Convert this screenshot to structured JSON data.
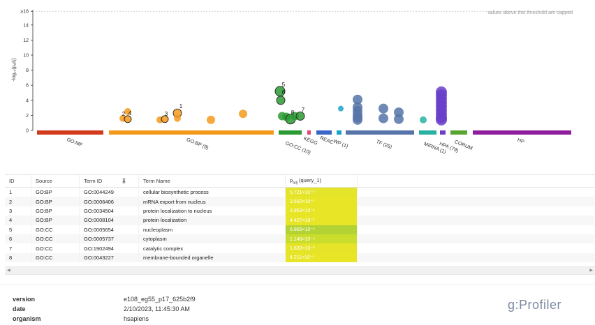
{
  "plot": {
    "cap_note": "values above this threshold are capped",
    "y_cap_label": "≥16",
    "y_ticks": [
      "0",
      "2",
      "4",
      "6",
      "8",
      "10",
      "12",
      "14"
    ],
    "y_axis_label": "-log₁₀(pₐdⱼ)",
    "sources": [
      {
        "name": "GO:MF",
        "color": "#d13a1b"
      },
      {
        "name": "GO:BP (9)",
        "color": "#f39a1c"
      },
      {
        "name": "GO:CC (10)",
        "color": "#2b9a34"
      },
      {
        "name": "KEGG",
        "color": "#e0487a"
      },
      {
        "name": "REAC",
        "color": "#3a66c5"
      },
      {
        "name": "WP (1)",
        "color": "#1aa3c8"
      },
      {
        "name": "TF (26)",
        "color": "#5674a8"
      },
      {
        "name": "MIRNA (1)",
        "color": "#28b1a2"
      },
      {
        "name": "HPA (79)",
        "color": "#6a3ec9"
      },
      {
        "name": "CORUM",
        "color": "#57a630"
      },
      {
        "name": "HP",
        "color": "#8e1e9c"
      }
    ],
    "highlight_labels": [
      "1",
      "2",
      "3",
      "4",
      "5",
      "6",
      "7",
      "8"
    ]
  },
  "table": {
    "headers": {
      "id": "ID",
      "source": "Source",
      "term_id": "Term ID",
      "term_name": "Term Name",
      "padj": "padj (query_1)"
    },
    "rows": [
      {
        "id": "1",
        "source": "GO:BP",
        "term_id": "GO:0044249",
        "term_name": "cellular biosynthetic process",
        "padj": "5.721×10⁻³",
        "color": "#e4e42a"
      },
      {
        "id": "2",
        "source": "GO:BP",
        "term_id": "GO:0006406",
        "term_name": "mRNA export from nucleus",
        "padj": "3.502×10⁻²",
        "color": "#e8e526"
      },
      {
        "id": "3",
        "source": "GO:BP",
        "term_id": "GO:0034504",
        "term_name": "protein localization to nucleus",
        "padj": "3.953×10⁻²",
        "color": "#e8e526"
      },
      {
        "id": "4",
        "source": "GO:BP",
        "term_id": "GO:0008104",
        "term_name": "protein localization",
        "padj": "4.427×10⁻²",
        "color": "#e8e526"
      },
      {
        "id": "5",
        "source": "GO:CC",
        "term_id": "GO:0005654",
        "term_name": "nucleoplasm",
        "padj": "6.865×10⁻⁶",
        "color": "#b3d233"
      },
      {
        "id": "6",
        "source": "GO:CC",
        "term_id": "GO:0005737",
        "term_name": "cytoplasm",
        "padj": "1.146×10⁻⁴",
        "color": "#cbdd2c"
      },
      {
        "id": "7",
        "source": "GO:CC",
        "term_id": "GO:1902494",
        "term_name": "catalytic complex",
        "padj": "1.632×10⁻²",
        "color": "#e6e428"
      },
      {
        "id": "8",
        "source": "GO:CC",
        "term_id": "GO:0043227",
        "term_name": "membrane-bounded organelle",
        "padj": "4.211×10⁻²",
        "color": "#e8e526"
      }
    ]
  },
  "meta": {
    "version_label": "version",
    "version_value": "e108_eg55_p17_625b2f9",
    "date_label": "date",
    "date_value": "2/10/2023, 11:45:30 AM",
    "organism_label": "organism",
    "organism_value": "hsapiens"
  },
  "brand": "g:Profiler"
}
